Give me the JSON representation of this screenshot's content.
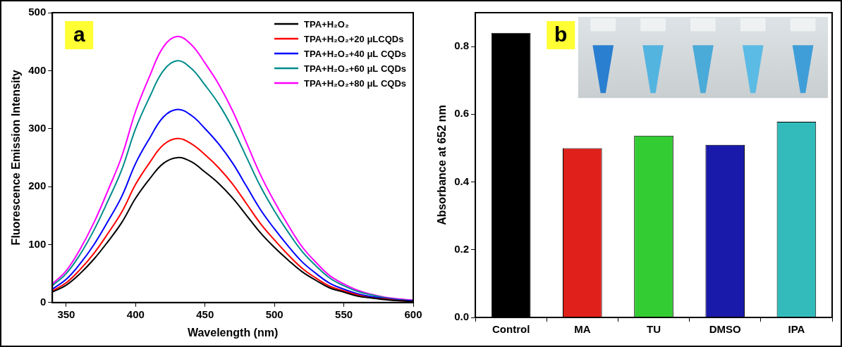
{
  "chart_data": [
    {
      "type": "line",
      "annotations": [
        "a"
      ],
      "x_label": "Wavelength (nm)",
      "y_label": "Fluorescence Emission Intensity",
      "x": [
        340,
        350,
        360,
        370,
        380,
        390,
        400,
        410,
        420,
        430,
        440,
        450,
        460,
        470,
        480,
        490,
        500,
        510,
        520,
        530,
        540,
        550,
        560,
        570,
        580,
        590,
        600
      ],
      "series": [
        {
          "name": "TPA+H₂O₂",
          "color": "#000000",
          "values": [
            18,
            30,
            50,
            75,
            105,
            138,
            180,
            213,
            240,
            250,
            243,
            225,
            205,
            180,
            150,
            120,
            95,
            73,
            53,
            38,
            25,
            18,
            11,
            8,
            5,
            3,
            2
          ]
        },
        {
          "name": "TPA+H₂O₂+20 μLCQDs",
          "color": "#ff0000",
          "values": [
            20,
            34,
            57,
            85,
            119,
            156,
            204,
            241,
            272,
            283,
            274,
            255,
            232,
            204,
            170,
            136,
            108,
            82,
            59,
            42,
            28,
            20,
            13,
            8,
            6,
            3,
            2
          ]
        },
        {
          "name": "TPA+H₂O₂+40 μL CQDs",
          "color": "#0000ff",
          "values": [
            23,
            40,
            67,
            100,
            140,
            183,
            240,
            283,
            320,
            333,
            323,
            300,
            273,
            240,
            200,
            160,
            127,
            97,
            70,
            50,
            33,
            23,
            15,
            10,
            7,
            4,
            3
          ]
        },
        {
          "name": "TPA+H₂O₂+60 μL CQDs",
          "color": "#008b8b",
          "values": [
            29,
            50,
            83,
            125,
            175,
            229,
            300,
            354,
            400,
            417,
            404,
            375,
            342,
            300,
            250,
            200,
            158,
            121,
            88,
            63,
            42,
            29,
            19,
            13,
            8,
            5,
            3
          ]
        },
        {
          "name": "TPA+H₂O₂+80 μL CQDs",
          "color": "#ff00ff",
          "values": [
            32,
            55,
            92,
            138,
            193,
            252,
            330,
            390,
            441,
            459,
            445,
            413,
            376,
            330,
            275,
            220,
            174,
            133,
            96,
            69,
            46,
            32,
            21,
            14,
            9,
            6,
            4
          ]
        }
      ],
      "xlim": [
        340,
        600
      ],
      "xticks": [
        350,
        400,
        450,
        500,
        550,
        600
      ],
      "ylim": [
        0,
        500
      ],
      "yticks": [
        0,
        100,
        200,
        300,
        400,
        500
      ],
      "grid": false,
      "legend": "top-right",
      "marker": "none"
    },
    {
      "type": "bar",
      "annotations": [
        "b"
      ],
      "y_label": "Absorbance at 652 nm",
      "categories": [
        "Control",
        "MA",
        "TU",
        "DMSO",
        "IPA"
      ],
      "values": [
        0.84,
        0.5,
        0.537,
        0.51,
        0.578
      ],
      "colors": [
        "#000000",
        "#e0201b",
        "#33cc33",
        "#1a1aaa",
        "#33bbbb"
      ],
      "ylim": [
        0,
        0.9
      ],
      "yticks": [
        {
          "value": 0,
          "label": "0.0"
        },
        {
          "value": 0.2,
          "label": "0.2"
        },
        {
          "value": 0.4,
          "label": "0.4"
        },
        {
          "value": 0.6,
          "label": "0.6"
        },
        {
          "value": 0.8,
          "label": "0.8"
        }
      ],
      "grid": false
    }
  ]
}
